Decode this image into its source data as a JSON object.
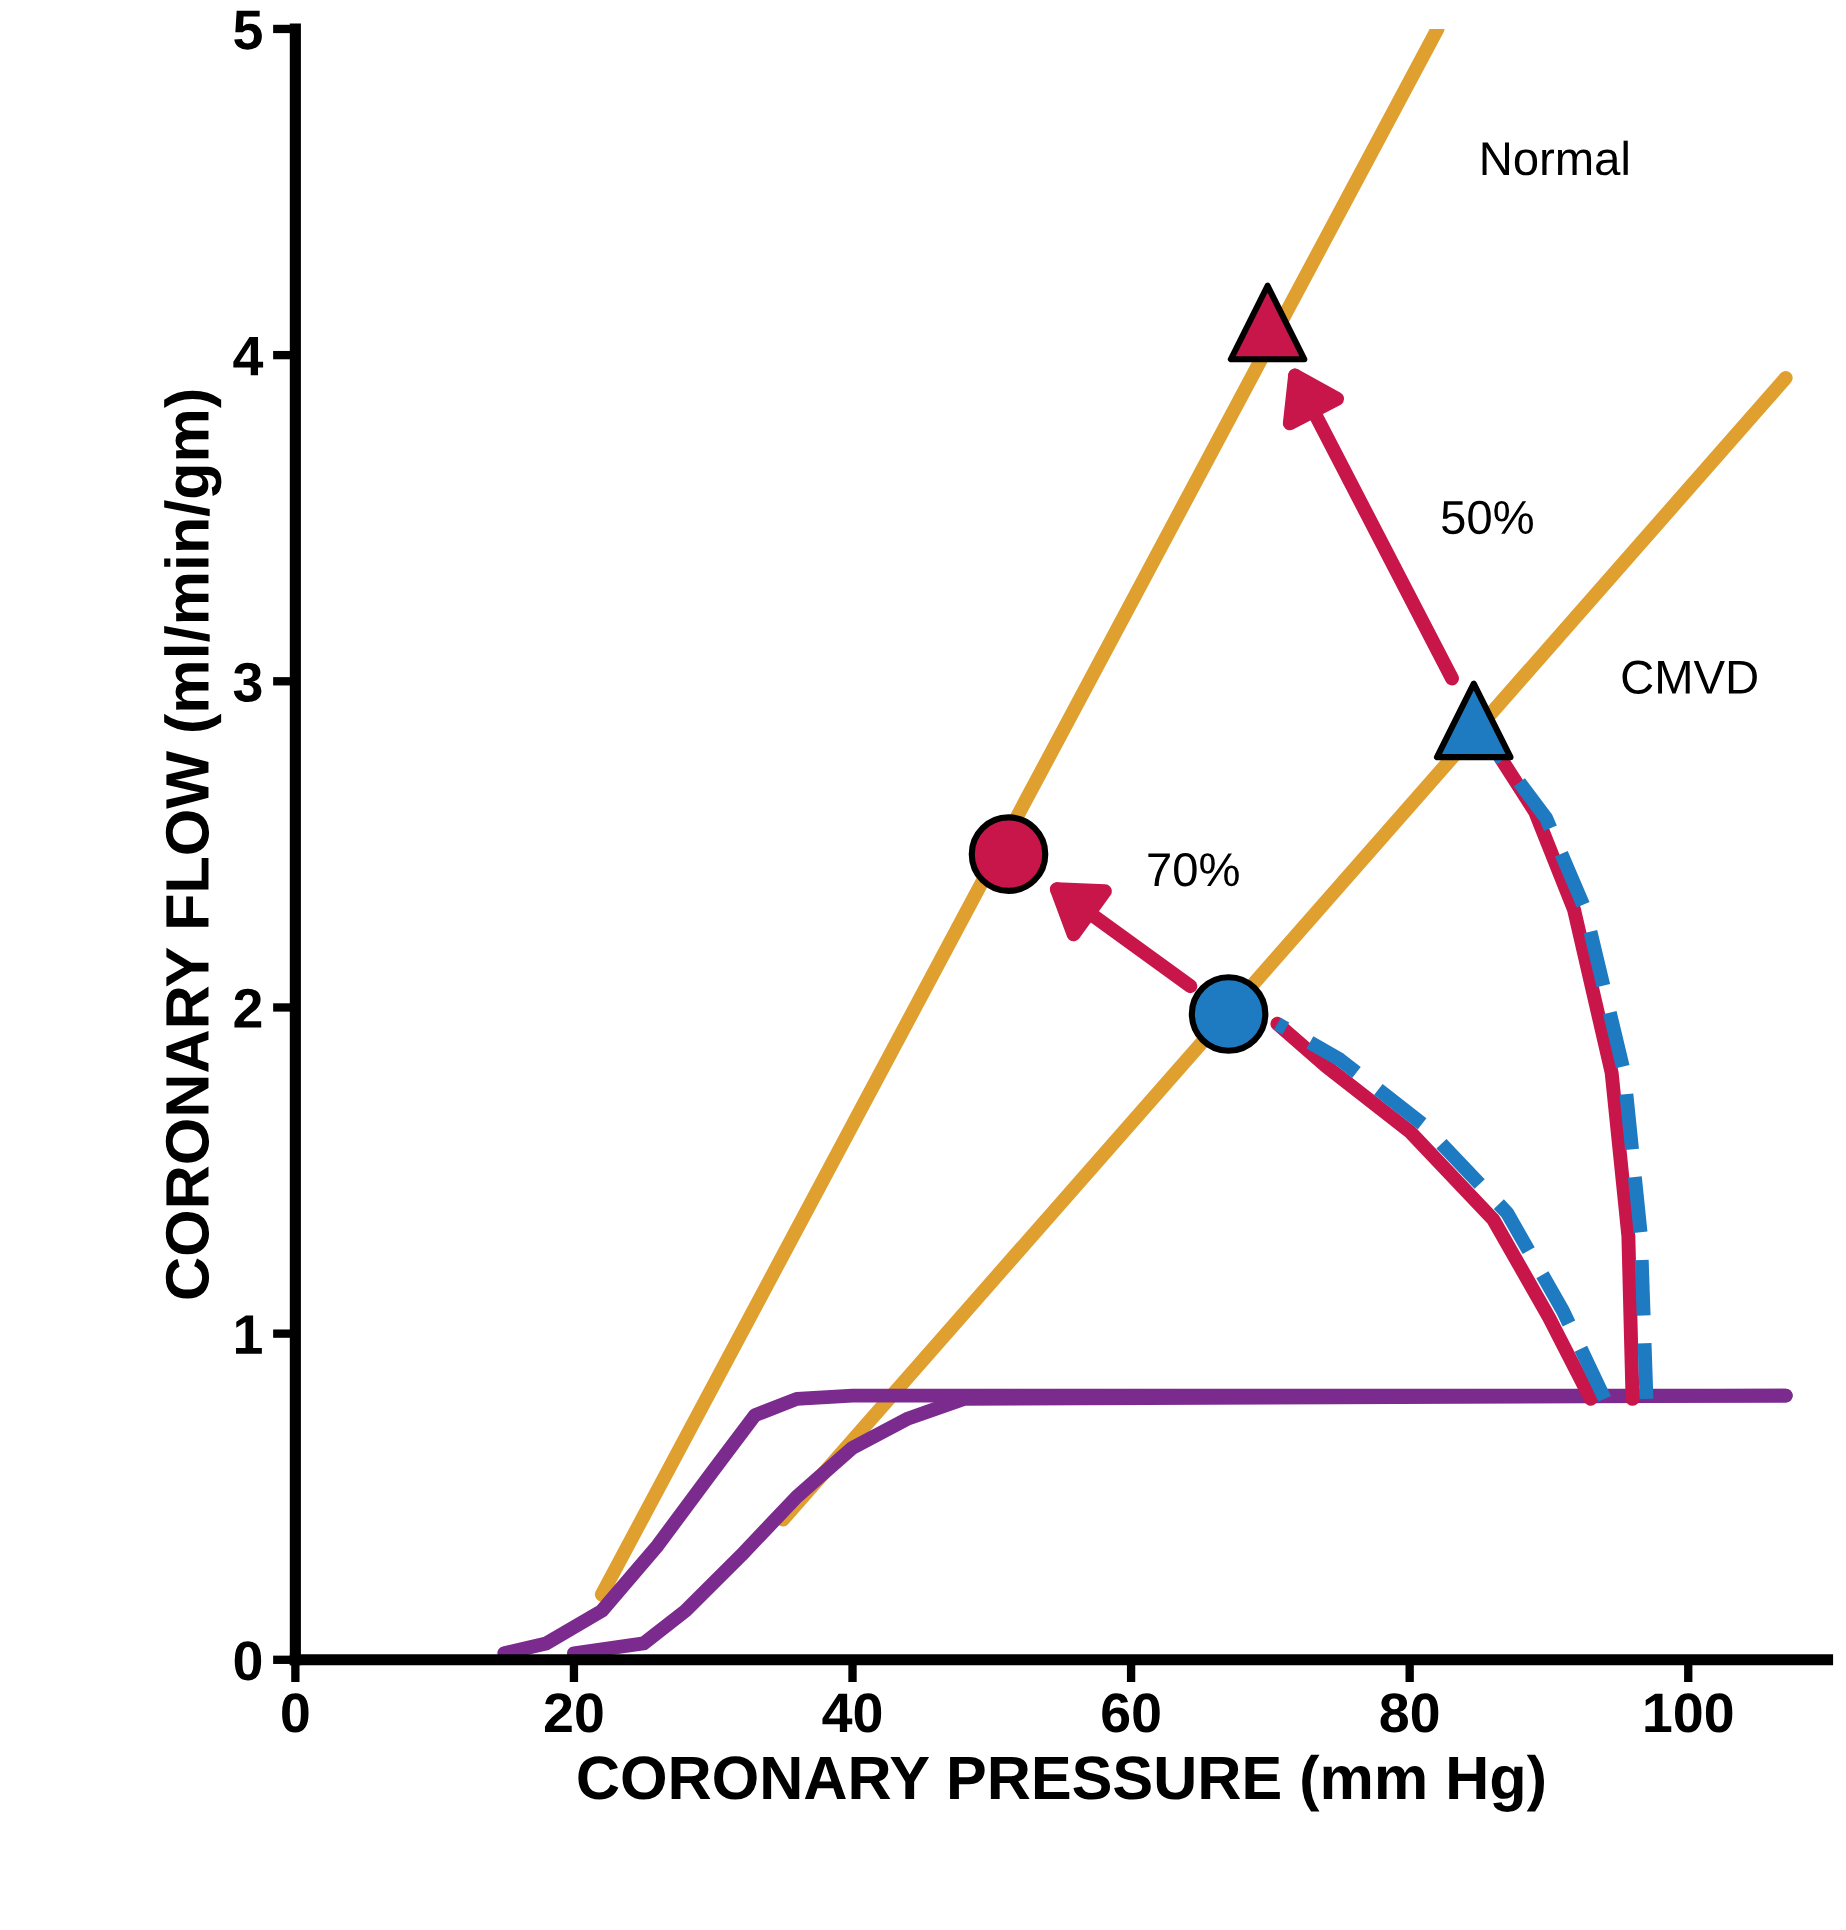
{
  "chart_data": {
    "type": "line",
    "xlabel": "CORONARY PRESSURE (mm Hg)",
    "ylabel": "CORONARY FLOW (ml/min/gm)",
    "xlim": [
      0,
      110
    ],
    "ylim": [
      0,
      5
    ],
    "xticks": [
      0,
      20,
      40,
      60,
      80,
      100
    ],
    "yticks": [
      0,
      1,
      2,
      3,
      4,
      5
    ],
    "grid": false,
    "legend": false,
    "series": [
      {
        "color": "#e0a030",
        "x": [
          22,
          82
        ],
        "values": [
          0.2,
          5
        ]
      },
      {
        "color": "#e0a030",
        "x": [
          35,
          107
        ],
        "values": [
          0.43,
          3.93
        ]
      },
      {
        "color": "#7b2a8e",
        "x": [
          15,
          18,
          22,
          26,
          30,
          33,
          36,
          40,
          107
        ],
        "values": [
          0.02,
          0.05,
          0.15,
          0.35,
          0.58,
          0.75,
          0.8,
          0.81,
          0.81
        ]
      },
      {
        "color": "#7b2a8e",
        "x": [
          20,
          25,
          28,
          32,
          36,
          40,
          44,
          48,
          107
        ],
        "values": [
          0.02,
          0.05,
          0.15,
          0.32,
          0.5,
          0.65,
          0.74,
          0.8,
          0.81
        ]
      },
      {
        "color": "#c8164b",
        "x": [
          93,
          90,
          86,
          80,
          74,
          70.5
        ],
        "values": [
          0.8,
          1.05,
          1.35,
          1.62,
          1.82,
          1.95
        ]
      },
      {
        "color": "#1f7bc1",
        "line_style": "dashed",
        "x": [
          94,
          91,
          87,
          81,
          75,
          70.5
        ],
        "values": [
          0.8,
          1.07,
          1.37,
          1.64,
          1.84,
          1.95
        ]
      },
      {
        "color": "#c8164b",
        "x": [
          96,
          95.7,
          94.5,
          91.8,
          89,
          86.3
        ],
        "values": [
          0.8,
          1.3,
          1.8,
          2.3,
          2.6,
          2.78
        ]
      },
      {
        "color": "#1f7bc1",
        "line_style": "dashed",
        "x": [
          97,
          96.6,
          95.4,
          92.6,
          89.8,
          86.3
        ],
        "values": [
          0.8,
          1.3,
          1.8,
          2.3,
          2.58,
          2.78
        ]
      },
      {
        "type": "scatter",
        "color": "#c8164b",
        "marker": "triangle",
        "x": [
          69.8
        ],
        "values": [
          4.1
        ]
      },
      {
        "type": "scatter",
        "color": "#1f7bc1",
        "marker": "triangle",
        "x": [
          84.6
        ],
        "values": [
          2.88
        ]
      },
      {
        "type": "scatter",
        "color": "#c8164b",
        "marker": "circle",
        "x": [
          51.2
        ],
        "values": [
          2.47
        ]
      },
      {
        "type": "scatter",
        "color": "#1f7bc1",
        "marker": "circle",
        "x": [
          67
        ],
        "values": [
          1.98
        ]
      }
    ],
    "annotations": [
      "Normal",
      "CMVD",
      "50%",
      "70%"
    ]
  }
}
